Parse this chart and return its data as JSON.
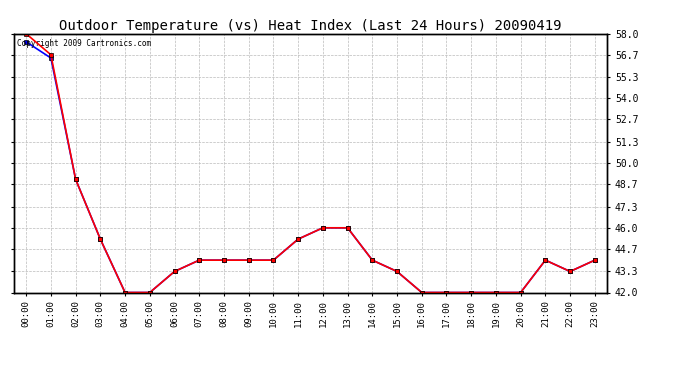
{
  "title": "Outdoor Temperature (vs) Heat Index (Last 24 Hours) 20090419",
  "copyright_text": "Copyright 2009 Cartronics.com",
  "x_labels": [
    "00:00",
    "01:00",
    "02:00",
    "03:00",
    "04:00",
    "05:00",
    "06:00",
    "07:00",
    "08:00",
    "09:00",
    "10:00",
    "11:00",
    "12:00",
    "13:00",
    "14:00",
    "15:00",
    "16:00",
    "17:00",
    "18:00",
    "19:00",
    "20:00",
    "21:00",
    "22:00",
    "23:00"
  ],
  "temp_values": [
    58.0,
    56.7,
    49.0,
    45.3,
    42.0,
    42.0,
    43.3,
    44.0,
    44.0,
    44.0,
    44.0,
    45.3,
    46.0,
    46.0,
    44.0,
    43.3,
    42.0,
    42.0,
    42.0,
    42.0,
    42.0,
    44.0,
    43.3,
    44.0
  ],
  "heat_values": [
    57.5,
    56.5,
    49.0,
    45.3,
    42.0,
    42.0,
    43.3,
    44.0,
    44.0,
    44.0,
    44.0,
    45.3,
    46.0,
    46.0,
    44.0,
    43.3,
    42.0,
    42.0,
    42.0,
    42.0,
    42.0,
    44.0,
    43.3,
    44.0
  ],
  "ylim_min": 42.0,
  "ylim_max": 58.0,
  "yticks": [
    42.0,
    43.3,
    44.7,
    46.0,
    47.3,
    48.7,
    50.0,
    51.3,
    52.7,
    54.0,
    55.3,
    56.7,
    58.0
  ],
  "temp_color": "#ff0000",
  "heat_color": "#0000ff",
  "bg_color": "#ffffff",
  "plot_bg": "#ffffff",
  "grid_color": "#bbbbbb",
  "title_fontsize": 10,
  "marker": "s",
  "marker_size": 3,
  "line_width": 1.2
}
